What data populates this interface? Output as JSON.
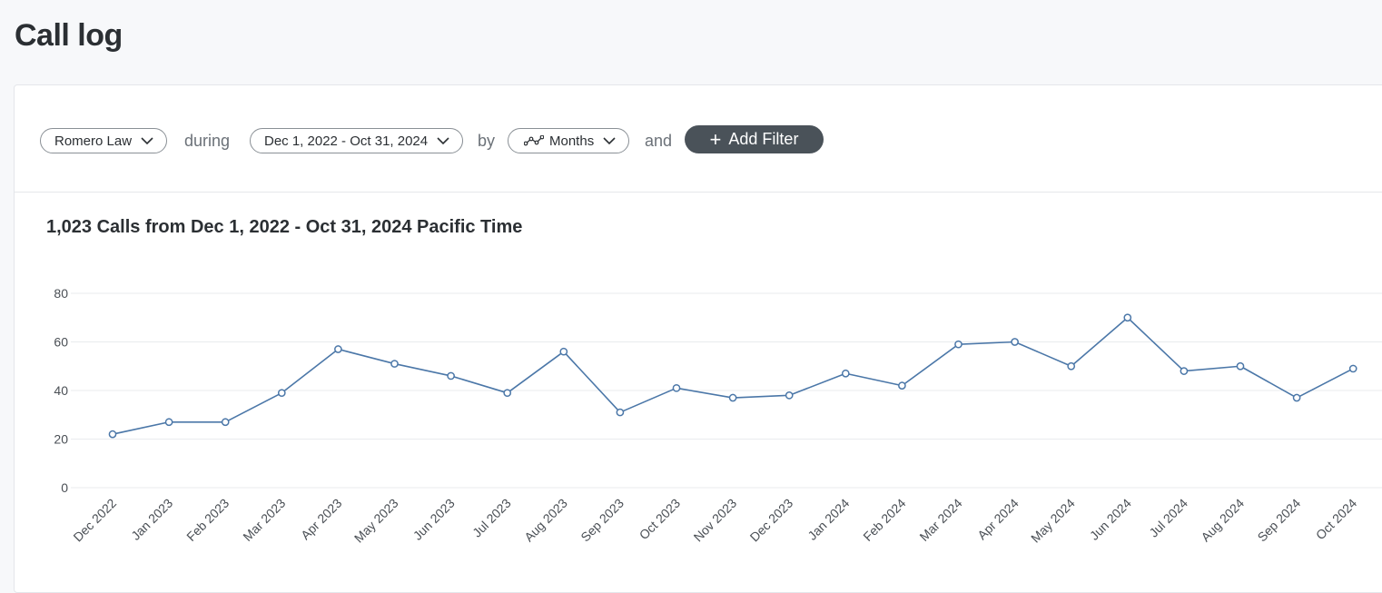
{
  "page": {
    "title": "Call log"
  },
  "filters": {
    "account": "Romero Law",
    "during_label": "during",
    "date_range": "Dec 1, 2022 - Oct 31, 2024",
    "by_label": "by",
    "granularity": "Months",
    "and_label": "and",
    "add_filter": "Add Filter"
  },
  "colors": {
    "line": "#4b77a8",
    "button_bg": "#4a5259",
    "grid": "#e9ebee"
  },
  "chart_data": {
    "type": "line",
    "title": "1,023 Calls from Dec 1, 2022 - Oct 31, 2024 Pacific Time",
    "xlabel": "",
    "ylabel": "",
    "ylim": [
      0,
      80
    ],
    "yticks": [
      0,
      20,
      40,
      60,
      80
    ],
    "grid": true,
    "categories": [
      "Dec 2022",
      "Jan 2023",
      "Feb 2023",
      "Mar 2023",
      "Apr 2023",
      "May 2023",
      "Jun 2023",
      "Jul 2023",
      "Aug 2023",
      "Sep 2023",
      "Oct 2023",
      "Nov 2023",
      "Dec 2023",
      "Jan 2024",
      "Feb 2024",
      "Mar 2024",
      "Apr 2024",
      "May 2024",
      "Jun 2024",
      "Jul 2024",
      "Aug 2024",
      "Sep 2024",
      "Oct 2024"
    ],
    "values": [
      22,
      27,
      27,
      39,
      57,
      51,
      46,
      39,
      56,
      31,
      41,
      37,
      38,
      47,
      42,
      59,
      60,
      50,
      70,
      48,
      50,
      37,
      49
    ]
  }
}
